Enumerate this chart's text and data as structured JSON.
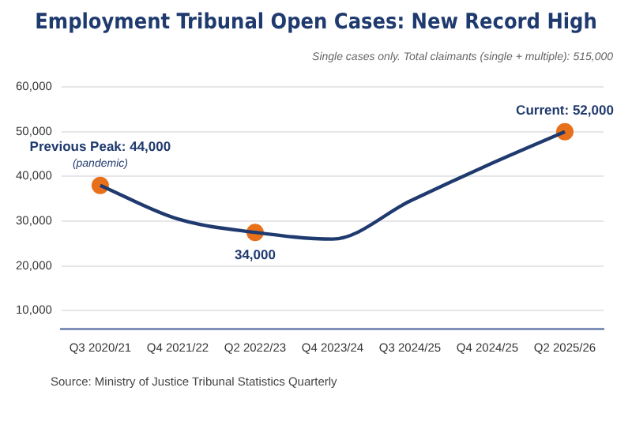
{
  "chart_data": {
    "type": "line",
    "title": "Employment Tribunal Open Cases: New Record High",
    "subtitle": "Single cases only. Total claimants (single + multiple): 515,000",
    "categories": [
      "Q3 2020/21",
      "Q4 2021/22",
      "Q2 2022/23",
      "Q4 2023/24",
      "Q3 2024/25",
      "Q4 2024/25",
      "Q2 2025/26"
    ],
    "series": [
      {
        "color": "#1f3a6e",
        "values": [
          38000,
          30500,
          27500,
          26000,
          34500,
          42500,
          50000
        ],
        "marker": "none"
      },
      {
        "type": "scatter",
        "color": "#e8701a",
        "x": [
          "Q3 2020/21",
          "Q2 2022/23",
          "Q2 2025/26"
        ],
        "values": [
          38000,
          27500,
          50000
        ],
        "marker": "circle"
      }
    ],
    "ylim": [
      6000,
      60000
    ],
    "yticks": [
      {
        "value": 10000,
        "label": "10,000"
      },
      {
        "value": 20000,
        "label": "20,000"
      },
      {
        "value": 30000,
        "label": "30,000"
      },
      {
        "value": 40000,
        "label": "40,000"
      },
      {
        "value": 50000,
        "label": "50,000"
      },
      {
        "value": 60000,
        "label": "60,000"
      }
    ],
    "grid": "y",
    "legend": false,
    "annotations": [
      {
        "text": "Previous Peak: 44,000",
        "x": "Q3 2020/21",
        "y": 38000
      },
      {
        "text": "(pandemic)",
        "x": "Q3 2020/21",
        "y": 38000
      },
      {
        "text": "34,000",
        "x": "Q2 2022/23",
        "y": 27500
      },
      {
        "text": "Current: 52,000",
        "x": "Q2 2025/26",
        "y": 50000
      },
      "Source: Ministry of Justice Tribunal Statistics Quarterly"
    ]
  }
}
